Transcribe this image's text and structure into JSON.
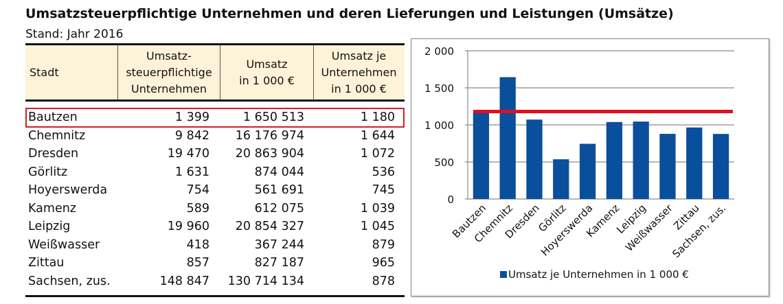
{
  "title": "Umsatzsteuerpflichtige Unternehmen und deren Lieferungen und Leistungen (Umsätze)",
  "subtitle": "Stand: Jahr 2016",
  "table": {
    "headers": [
      "Stadt",
      "Umsatz-\nsteuerpflichtige\nUnternehmen",
      "Umsatz\nin 1 000 €",
      "Umsatz je\nUnternehmen\nin 1 000 €"
    ],
    "rows": [
      [
        "Bautzen",
        "1 399",
        "1 650 513",
        "1 180"
      ],
      [
        "Chemnitz",
        "9 842",
        "16 176 974",
        "1 644"
      ],
      [
        "Dresden",
        "19 470",
        "20 863 904",
        "1 072"
      ],
      [
        "Görlitz",
        "1 631",
        "874 044",
        "536"
      ],
      [
        "Hoyerswerda",
        "754",
        "561 691",
        "745"
      ],
      [
        "Kamenz",
        "589",
        "612 075",
        "1 039"
      ],
      [
        "Leipzig",
        "19 960",
        "20 854 327",
        "1 045"
      ],
      [
        "Weißwasser",
        "418",
        "367 244",
        "879"
      ],
      [
        "Zittau",
        "857",
        "827 187",
        "965"
      ],
      [
        "Sachsen, zus.",
        "148 847",
        "130 714 134",
        "878"
      ]
    ],
    "highlighted_row": 0,
    "highlight_color": "#d0202a",
    "header_bg": "#fdf3d8"
  },
  "chart_data": {
    "type": "bar",
    "title": "",
    "xlabel": "",
    "ylabel": "",
    "categories": [
      "Bautzen",
      "Chemnitz",
      "Dresden",
      "Görlitz",
      "Hoyerswerda",
      "Kamenz",
      "Leipzig",
      "Weißwasser",
      "Zittau",
      "Sachsen, zus."
    ],
    "series": [
      {
        "name": "Umsatz je Unternehmen in 1 000 €",
        "values": [
          1180,
          1644,
          1072,
          536,
          745,
          1039,
          1045,
          879,
          965,
          878
        ],
        "color": "#0a4f9c"
      }
    ],
    "reference_line": {
      "value": 1180,
      "color": "#e0101e",
      "label": "Bautzen"
    },
    "ylim": [
      0,
      2000
    ],
    "yticks": [
      0,
      500,
      1000,
      1500,
      2000
    ],
    "ytick_labels": [
      "0",
      "500",
      "1 000",
      "1 500",
      "2 000"
    ],
    "grid": true,
    "legend": "bottom"
  }
}
